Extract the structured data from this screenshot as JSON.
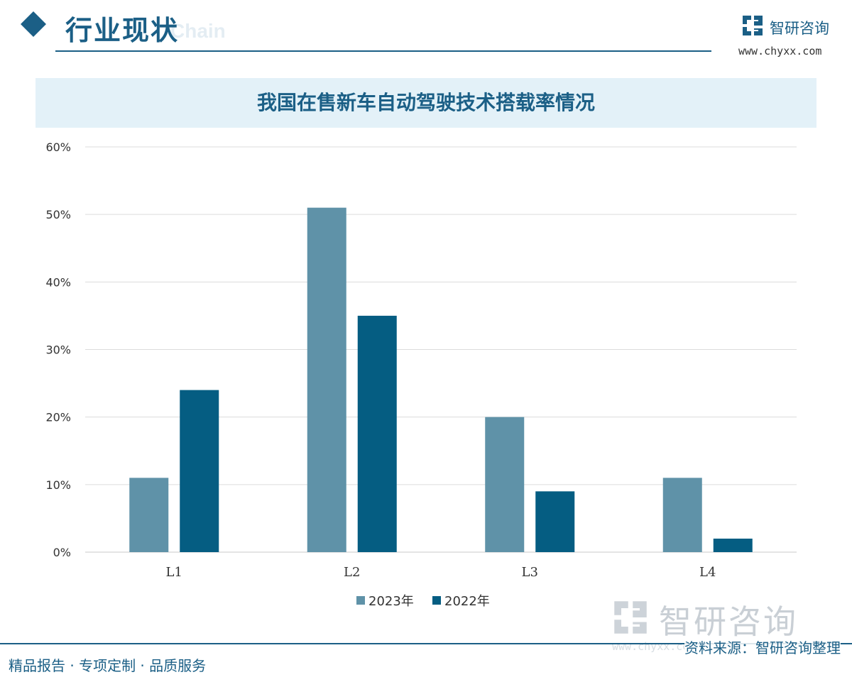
{
  "header": {
    "section_title": "行业现状",
    "watermark_text": "Chain",
    "brand_name": "智研咨询",
    "brand_url": "www.chyxx.com"
  },
  "chart_data": {
    "type": "bar",
    "title": "我国在售新车自动驾驶技术搭载率情况",
    "categories": [
      "L1",
      "L2",
      "L3",
      "L4"
    ],
    "series": [
      {
        "name": "2023年",
        "values": [
          11,
          51,
          20,
          11
        ],
        "color": "#5f92a8"
      },
      {
        "name": "2022年",
        "values": [
          24,
          35,
          9,
          2
        ],
        "color": "#055d82"
      }
    ],
    "ylim": [
      0,
      60
    ],
    "yticks": [
      0,
      10,
      20,
      30,
      40,
      50,
      60
    ],
    "tick_suffix": "%",
    "grid": true,
    "legend_position": "bottom"
  },
  "watermark": {
    "brand": "智研咨询",
    "url": "www.chyxx.com"
  },
  "footer": {
    "left": "精品报告 · 专项定制 · 品质服务",
    "source": "资料来源：智研咨询整理"
  },
  "colors": {
    "brand": "#1b5f86",
    "band": "#e3f1f8"
  }
}
